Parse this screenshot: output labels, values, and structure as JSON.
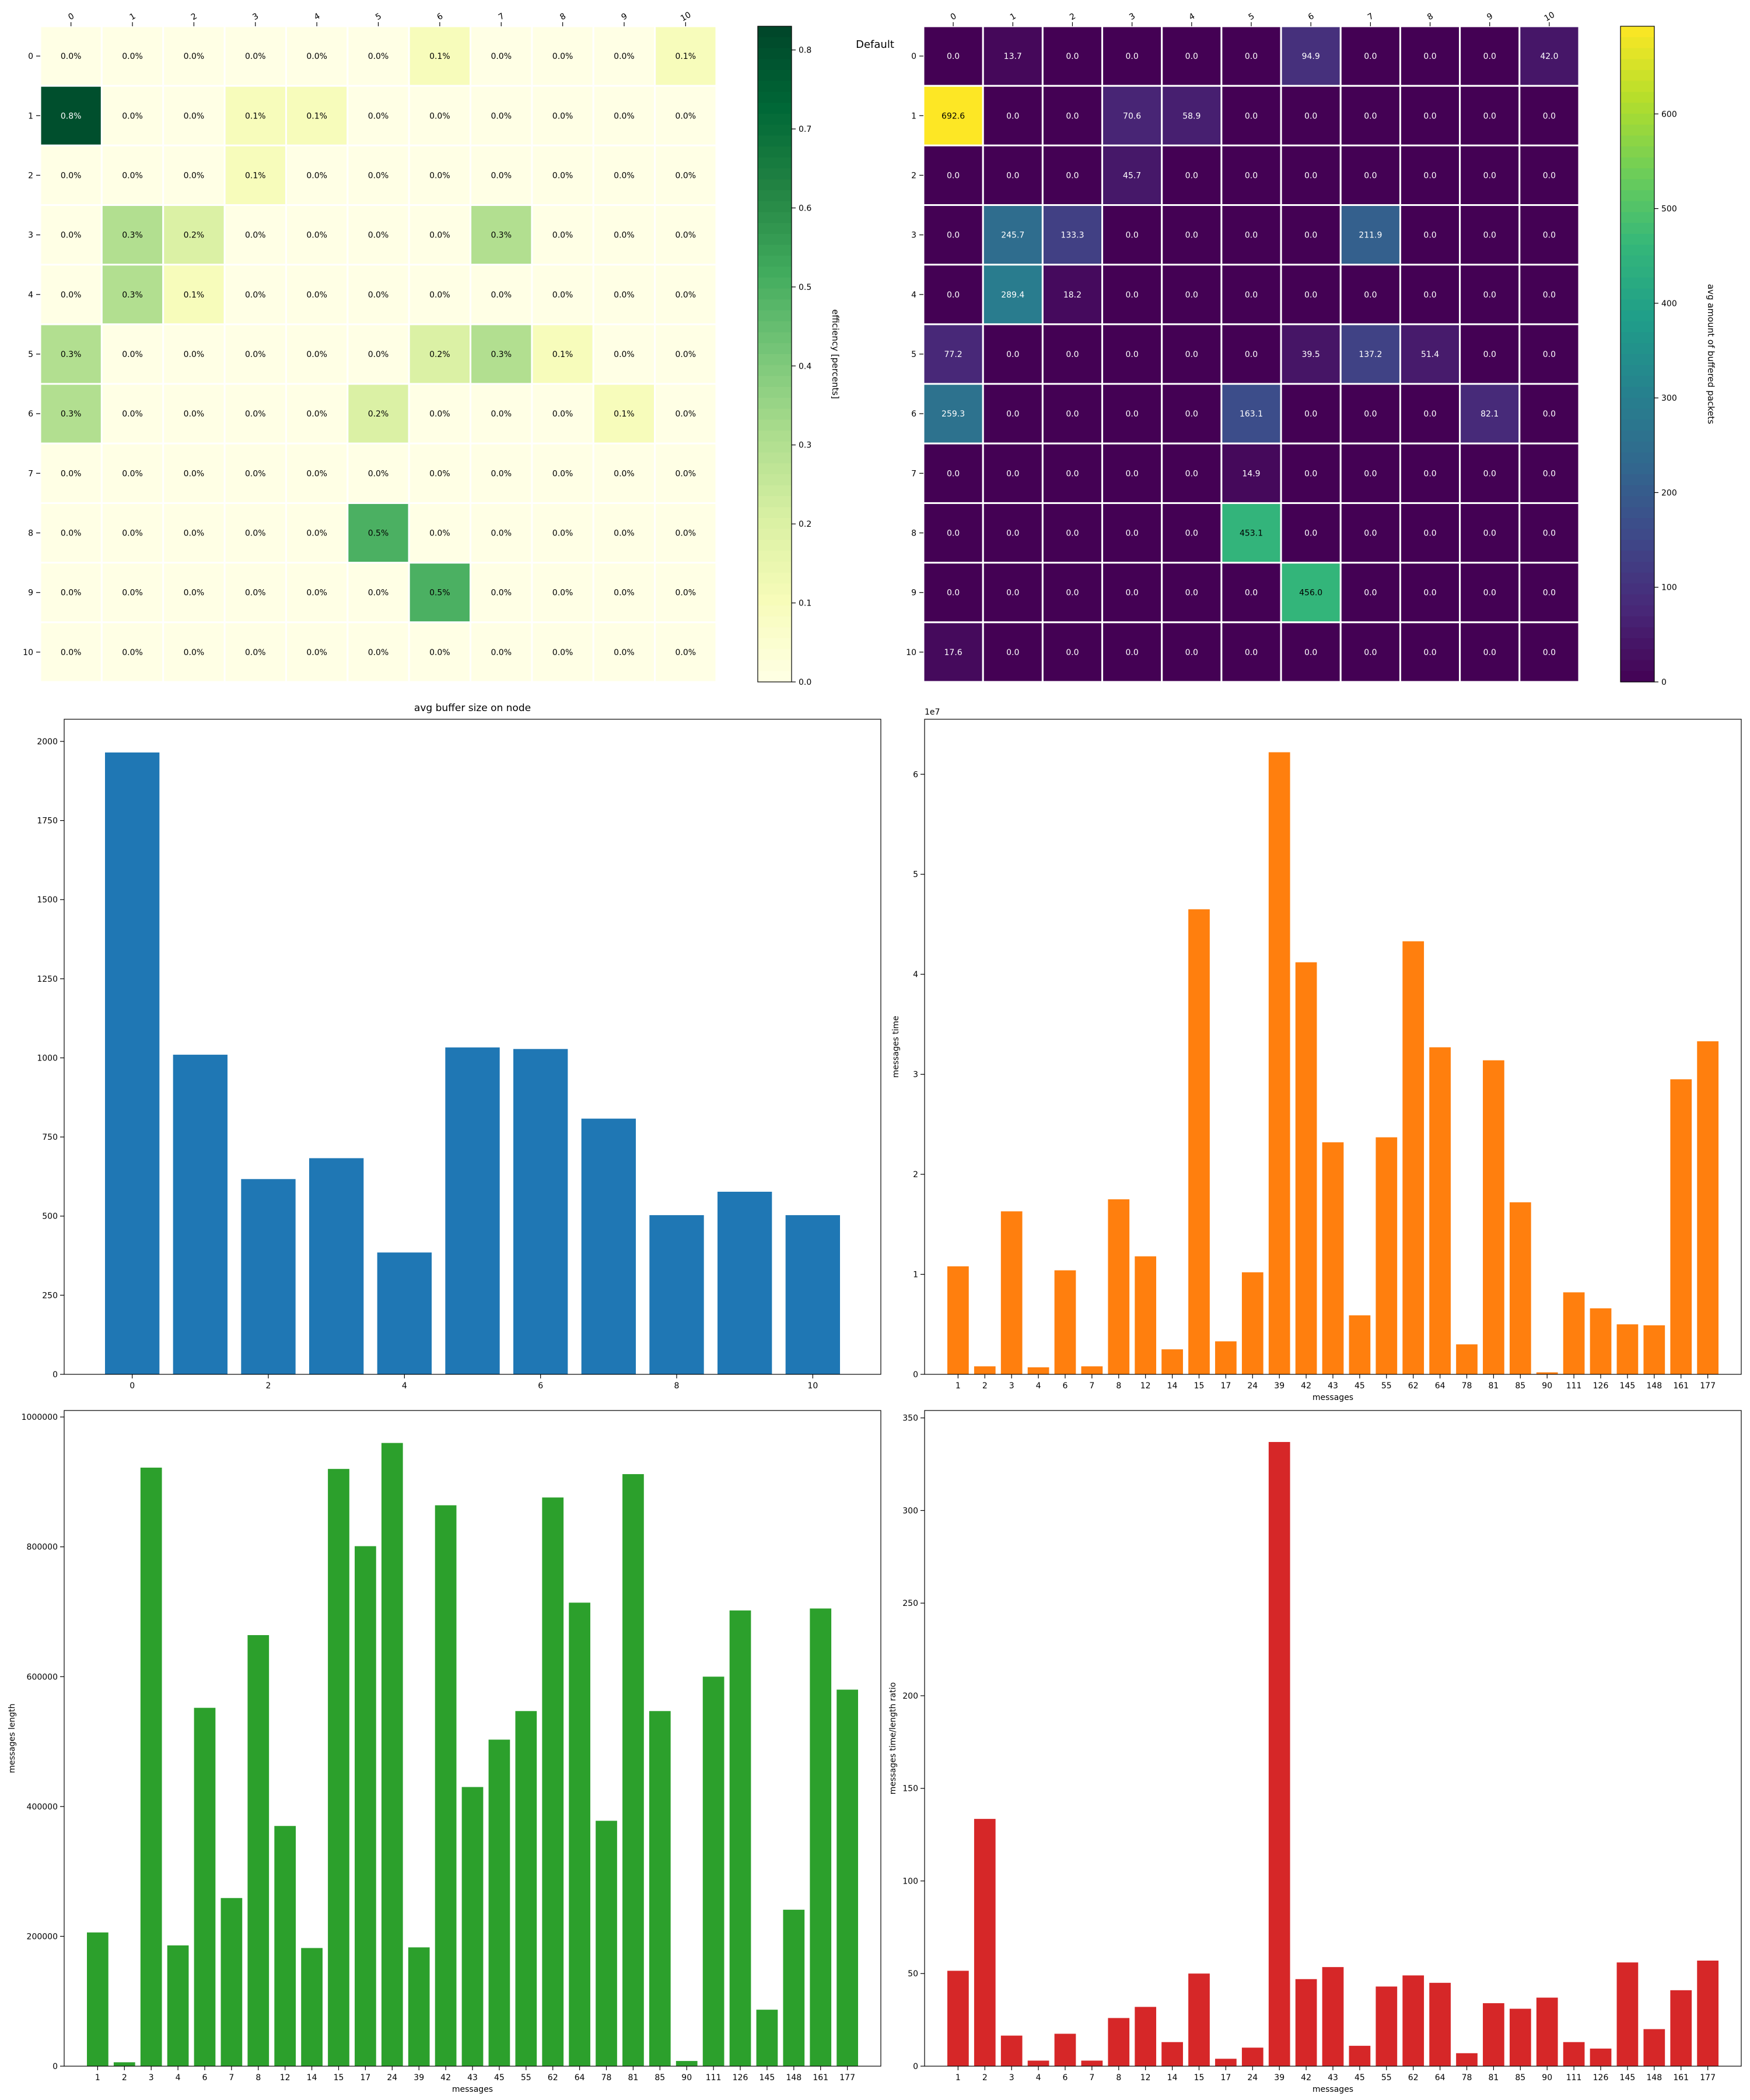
{
  "chart_data": [
    {
      "type": "heatmap",
      "id": "efficiency",
      "title": "",
      "xlabel": "",
      "ylabel": "",
      "x": [
        "0",
        "1",
        "2",
        "3",
        "4",
        "5",
        "6",
        "7",
        "8",
        "9",
        "10"
      ],
      "y": [
        "0",
        "1",
        "2",
        "3",
        "4",
        "5",
        "6",
        "7",
        "8",
        "9",
        "10"
      ],
      "values": [
        [
          0,
          0,
          0,
          0,
          0,
          0,
          0.1,
          0,
          0,
          0,
          0.1
        ],
        [
          0.8,
          0,
          0,
          0.1,
          0.1,
          0,
          0,
          0,
          0,
          0,
          0
        ],
        [
          0,
          0,
          0,
          0.1,
          0,
          0,
          0,
          0,
          0,
          0,
          0
        ],
        [
          0,
          0.3,
          0.2,
          0,
          0,
          0,
          0,
          0.3,
          0,
          0,
          0
        ],
        [
          0,
          0.3,
          0.1,
          0,
          0,
          0,
          0,
          0,
          0,
          0,
          0
        ],
        [
          0.3,
          0,
          0,
          0,
          0,
          0,
          0.2,
          0.3,
          0.1,
          0,
          0
        ],
        [
          0.3,
          0,
          0,
          0,
          0,
          0.2,
          0,
          0,
          0,
          0.1,
          0
        ],
        [
          0,
          0,
          0,
          0,
          0,
          0,
          0,
          0,
          0,
          0,
          0
        ],
        [
          0,
          0,
          0,
          0,
          0,
          0.5,
          0,
          0,
          0,
          0,
          0
        ],
        [
          0,
          0,
          0,
          0,
          0,
          0,
          0.5,
          0,
          0,
          0,
          0
        ],
        [
          0,
          0,
          0,
          0,
          0,
          0,
          0,
          0,
          0,
          0,
          0
        ]
      ],
      "cell_labels": [
        [
          "0.0%",
          "0.0%",
          "0.0%",
          "0.0%",
          "0.0%",
          "0.0%",
          "0.1%",
          "0.0%",
          "0.0%",
          "0.0%",
          "0.1%"
        ],
        [
          "0.8%",
          "0.0%",
          "0.0%",
          "0.1%",
          "0.1%",
          "0.0%",
          "0.0%",
          "0.0%",
          "0.0%",
          "0.0%",
          "0.0%"
        ],
        [
          "0.0%",
          "0.0%",
          "0.0%",
          "0.1%",
          "0.0%",
          "0.0%",
          "0.0%",
          "0.0%",
          "0.0%",
          "0.0%",
          "0.0%"
        ],
        [
          "0.0%",
          "0.3%",
          "0.2%",
          "0.0%",
          "0.0%",
          "0.0%",
          "0.0%",
          "0.3%",
          "0.0%",
          "0.0%",
          "0.0%"
        ],
        [
          "0.0%",
          "0.3%",
          "0.1%",
          "0.0%",
          "0.0%",
          "0.0%",
          "0.0%",
          "0.0%",
          "0.0%",
          "0.0%",
          "0.0%"
        ],
        [
          "0.3%",
          "0.0%",
          "0.0%",
          "0.0%",
          "0.0%",
          "0.0%",
          "0.2%",
          "0.3%",
          "0.1%",
          "0.0%",
          "0.0%"
        ],
        [
          "0.3%",
          "0.0%",
          "0.0%",
          "0.0%",
          "0.0%",
          "0.2%",
          "0.0%",
          "0.0%",
          "0.0%",
          "0.1%",
          "0.0%"
        ],
        [
          "0.0%",
          "0.0%",
          "0.0%",
          "0.0%",
          "0.0%",
          "0.0%",
          "0.0%",
          "0.0%",
          "0.0%",
          "0.0%",
          "0.0%"
        ],
        [
          "0.0%",
          "0.0%",
          "0.0%",
          "0.0%",
          "0.0%",
          "0.5%",
          "0.0%",
          "0.0%",
          "0.0%",
          "0.0%",
          "0.0%"
        ],
        [
          "0.0%",
          "0.0%",
          "0.0%",
          "0.0%",
          "0.0%",
          "0.0%",
          "0.5%",
          "0.0%",
          "0.0%",
          "0.0%",
          "0.0%"
        ],
        [
          "0.0%",
          "0.0%",
          "0.0%",
          "0.0%",
          "0.0%",
          "0.0%",
          "0.0%",
          "0.0%",
          "0.0%",
          "0.0%",
          "0.0%"
        ]
      ],
      "vmin": 0,
      "vmax": 0.83,
      "colorbar_label": "efficiency [percents]",
      "colorbar_ticks": [
        0.0,
        0.1,
        0.2,
        0.3,
        0.4,
        0.5,
        0.6,
        0.7,
        0.8
      ],
      "colorbar_tick_labels": [
        "0.0",
        "0.1",
        "0.2",
        "0.3",
        "0.4",
        "0.5",
        "0.6",
        "0.7",
        "0.8"
      ],
      "colormap": [
        "#ffffe5",
        "#f7fcb9",
        "#d9f0a3",
        "#addd8e",
        "#78c679",
        "#41ab5d",
        "#238443",
        "#006837",
        "#004529"
      ]
    },
    {
      "type": "heatmap",
      "id": "buffered",
      "title": "",
      "side_label": "Default",
      "xlabel": "",
      "ylabel": "",
      "x": [
        "0",
        "1",
        "2",
        "3",
        "4",
        "5",
        "6",
        "7",
        "8",
        "9",
        "10"
      ],
      "y": [
        "0",
        "1",
        "2",
        "3",
        "4",
        "5",
        "6",
        "7",
        "8",
        "9",
        "10"
      ],
      "values": [
        [
          0,
          13.7,
          0,
          0,
          0,
          0,
          94.9,
          0,
          0,
          0,
          42.0
        ],
        [
          692.6,
          0,
          0,
          70.6,
          58.9,
          0,
          0,
          0,
          0,
          0,
          0
        ],
        [
          0,
          0,
          0,
          45.7,
          0,
          0,
          0,
          0,
          0,
          0,
          0
        ],
        [
          0,
          245.7,
          133.3,
          0,
          0,
          0,
          0,
          211.9,
          0,
          0,
          0
        ],
        [
          0,
          289.4,
          18.2,
          0,
          0,
          0,
          0,
          0,
          0,
          0,
          0
        ],
        [
          77.2,
          0,
          0,
          0,
          0,
          0,
          39.5,
          137.2,
          51.4,
          0,
          0
        ],
        [
          259.3,
          0,
          0,
          0,
          0,
          163.1,
          0,
          0,
          0,
          82.1,
          0
        ],
        [
          0,
          0,
          0,
          0,
          0,
          14.9,
          0,
          0,
          0,
          0,
          0
        ],
        [
          0,
          0,
          0,
          0,
          0,
          453.1,
          0,
          0,
          0,
          0,
          0
        ],
        [
          0,
          0,
          0,
          0,
          0,
          0,
          456.0,
          0,
          0,
          0,
          0
        ],
        [
          17.6,
          0,
          0,
          0,
          0,
          0,
          0,
          0,
          0,
          0,
          0
        ]
      ],
      "cell_labels": [
        [
          "0.0",
          "13.7",
          "0.0",
          "0.0",
          "0.0",
          "0.0",
          "94.9",
          "0.0",
          "0.0",
          "0.0",
          "42.0"
        ],
        [
          "692.6",
          "0.0",
          "0.0",
          "70.6",
          "58.9",
          "0.0",
          "0.0",
          "0.0",
          "0.0",
          "0.0",
          "0.0"
        ],
        [
          "0.0",
          "0.0",
          "0.0",
          "45.7",
          "0.0",
          "0.0",
          "0.0",
          "0.0",
          "0.0",
          "0.0",
          "0.0"
        ],
        [
          "0.0",
          "245.7",
          "133.3",
          "0.0",
          "0.0",
          "0.0",
          "0.0",
          "211.9",
          "0.0",
          "0.0",
          "0.0"
        ],
        [
          "0.0",
          "289.4",
          "18.2",
          "0.0",
          "0.0",
          "0.0",
          "0.0",
          "0.0",
          "0.0",
          "0.0",
          "0.0"
        ],
        [
          "77.2",
          "0.0",
          "0.0",
          "0.0",
          "0.0",
          "0.0",
          "39.5",
          "137.2",
          "51.4",
          "0.0",
          "0.0"
        ],
        [
          "259.3",
          "0.0",
          "0.0",
          "0.0",
          "0.0",
          "163.1",
          "0.0",
          "0.0",
          "0.0",
          "82.1",
          "0.0"
        ],
        [
          "0.0",
          "0.0",
          "0.0",
          "0.0",
          "0.0",
          "14.9",
          "0.0",
          "0.0",
          "0.0",
          "0.0",
          "0.0"
        ],
        [
          "0.0",
          "0.0",
          "0.0",
          "0.0",
          "0.0",
          "453.1",
          "0.0",
          "0.0",
          "0.0",
          "0.0",
          "0.0"
        ],
        [
          "0.0",
          "0.0",
          "0.0",
          "0.0",
          "0.0",
          "0.0",
          "456.0",
          "0.0",
          "0.0",
          "0.0",
          "0.0"
        ],
        [
          "17.6",
          "0.0",
          "0.0",
          "0.0",
          "0.0",
          "0.0",
          "0.0",
          "0.0",
          "0.0",
          "0.0",
          "0.0"
        ]
      ],
      "vmin": 0,
      "vmax": 692.6,
      "colorbar_label": "avg amount of buffered packets",
      "colorbar_ticks": [
        0,
        100,
        200,
        300,
        400,
        500,
        600
      ],
      "colorbar_tick_labels": [
        "0",
        "100",
        "200",
        "300",
        "400",
        "500",
        "600"
      ],
      "colormap": [
        "#440154",
        "#482878",
        "#3e4989",
        "#31688e",
        "#26828e",
        "#1f9e89",
        "#35b779",
        "#6ece58",
        "#b5de2b",
        "#fde725"
      ]
    },
    {
      "type": "bar",
      "id": "buffer",
      "title": "avg buffer size on node",
      "xlabel": "",
      "ylabel": "",
      "x": [
        0,
        1,
        2,
        3,
        4,
        5,
        6,
        7,
        8,
        9,
        10
      ],
      "values": [
        1965,
        1010,
        617,
        683,
        385,
        1033,
        1028,
        808,
        503,
        577,
        503
      ],
      "xlim": [
        -1,
        11
      ],
      "ylim": [
        0,
        2070
      ],
      "xticks": [
        0,
        2,
        4,
        6,
        8,
        10
      ],
      "yticks": [
        0,
        250,
        500,
        750,
        1000,
        1250,
        1500,
        1750,
        2000
      ],
      "color": "#1f77b4"
    },
    {
      "type": "bar",
      "id": "msgtime",
      "title": "",
      "xlabel": "messages",
      "ylabel": "messages time",
      "offset_label": "1e7",
      "categories": [
        "1",
        "2",
        "3",
        "4",
        "6",
        "7",
        "8",
        "12",
        "14",
        "15",
        "17",
        "24",
        "39",
        "42",
        "43",
        "45",
        "55",
        "62",
        "64",
        "78",
        "81",
        "85",
        "90",
        "111",
        "126",
        "145",
        "148",
        "161",
        "177"
      ],
      "values": [
        1.08,
        0.08,
        1.63,
        0.07,
        1.04,
        0.08,
        1.75,
        1.18,
        0.25,
        4.65,
        0.33,
        1.02,
        6.22,
        4.12,
        2.32,
        0.59,
        2.37,
        4.33,
        3.27,
        0.3,
        3.14,
        1.72,
        0.02,
        0.82,
        0.66,
        0.5,
        0.49,
        2.95,
        3.33
      ],
      "ylim": [
        0,
        6.55
      ],
      "yticks": [
        0,
        1,
        2,
        3,
        4,
        5,
        6
      ],
      "color": "#ff7f0e"
    },
    {
      "type": "bar",
      "id": "msglen",
      "title": "",
      "xlabel": "messages",
      "ylabel": "messages length",
      "categories": [
        "1",
        "2",
        "3",
        "4",
        "6",
        "7",
        "8",
        "12",
        "14",
        "15",
        "17",
        "24",
        "39",
        "42",
        "43",
        "45",
        "55",
        "62",
        "64",
        "78",
        "81",
        "85",
        "90",
        "111",
        "126",
        "145",
        "148",
        "161",
        "177"
      ],
      "values": [
        206000,
        6000,
        922000,
        186000,
        552000,
        259000,
        664000,
        370000,
        182000,
        920000,
        801000,
        960000,
        183000,
        864000,
        430000,
        503000,
        547000,
        876000,
        714000,
        378000,
        912000,
        547000,
        8000,
        600000,
        702000,
        87000,
        241000,
        705000,
        580000
      ],
      "ylim": [
        0,
        1010000
      ],
      "yticks": [
        0,
        200000,
        400000,
        600000,
        800000,
        1000000
      ],
      "color": "#2ca02c"
    },
    {
      "type": "bar",
      "id": "ratio",
      "title": "",
      "xlabel": "messages",
      "ylabel": "messages time/length ratio",
      "categories": [
        "1",
        "2",
        "3",
        "4",
        "6",
        "7",
        "8",
        "12",
        "14",
        "15",
        "17",
        "24",
        "39",
        "42",
        "43",
        "45",
        "55",
        "62",
        "64",
        "78",
        "81",
        "85",
        "90",
        "111",
        "126",
        "145",
        "148",
        "161",
        "177"
      ],
      "values": [
        51.5,
        133.5,
        16.5,
        3,
        17.5,
        3,
        26,
        32,
        13,
        50,
        4,
        10,
        337,
        47,
        53.5,
        11,
        43,
        49,
        45,
        7,
        34,
        31,
        37,
        13,
        9.5,
        56,
        20,
        41,
        57
      ],
      "ylim": [
        0,
        354
      ],
      "yticks": [
        0,
        50,
        100,
        150,
        200,
        250,
        300,
        350
      ],
      "color": "#d62728"
    }
  ]
}
